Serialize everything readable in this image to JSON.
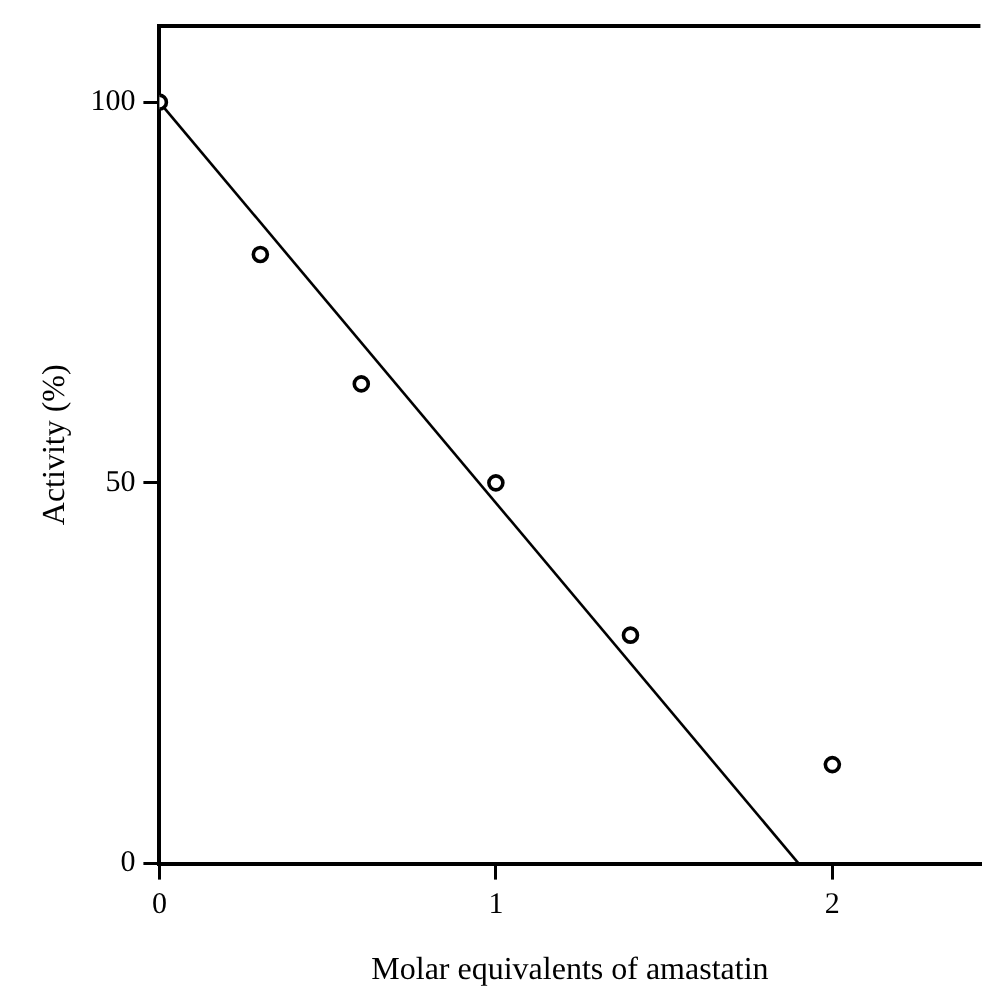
{
  "chart_data": {
    "type": "scatter",
    "xlabel": "Molar equivalents of amastatin",
    "ylabel": "Activity (%)",
    "xlim": [
      0,
      2.44
    ],
    "xticks": [
      0,
      1,
      2
    ],
    "ylim": [
      0,
      110
    ],
    "yticks": [
      0,
      50,
      100
    ],
    "grid": false,
    "legend": false,
    "marker": "circle",
    "series": [
      {
        "color": "#000000",
        "x": [
          0,
          0.3,
          0.6,
          1,
          1.4,
          2
        ],
        "values": [
          100,
          80,
          63,
          50,
          30,
          13
        ]
      },
      {
        "type": "line",
        "color": "#000000",
        "marker": "none",
        "line_style": "solid",
        "x": [
          0,
          1.9
        ],
        "values": [
          100,
          0
        ]
      }
    ]
  }
}
